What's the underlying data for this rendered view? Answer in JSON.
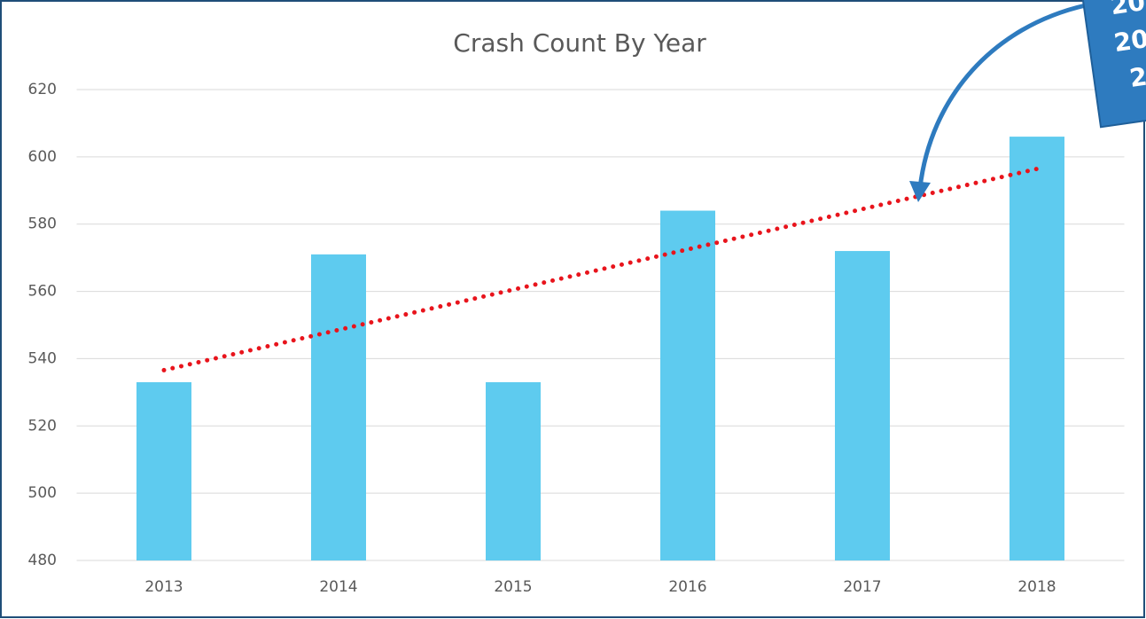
{
  "chart_data": {
    "type": "bar",
    "title": "Crash Count By Year",
    "categories": [
      "2013",
      "2014",
      "2015",
      "2016",
      "2017",
      "2018"
    ],
    "values": [
      533,
      571,
      533,
      584,
      572,
      606
    ],
    "color": "#5ecbef",
    "ylim": [
      480,
      620
    ],
    "yticks": [
      480,
      500,
      520,
      540,
      560,
      580,
      600,
      620
    ],
    "grid": true,
    "trendline": {
      "color": "#e8141c"
    },
    "annotation": {
      "lines": [
        "20",
        "20",
        "2"
      ],
      "color": "#2e7bbf"
    }
  }
}
